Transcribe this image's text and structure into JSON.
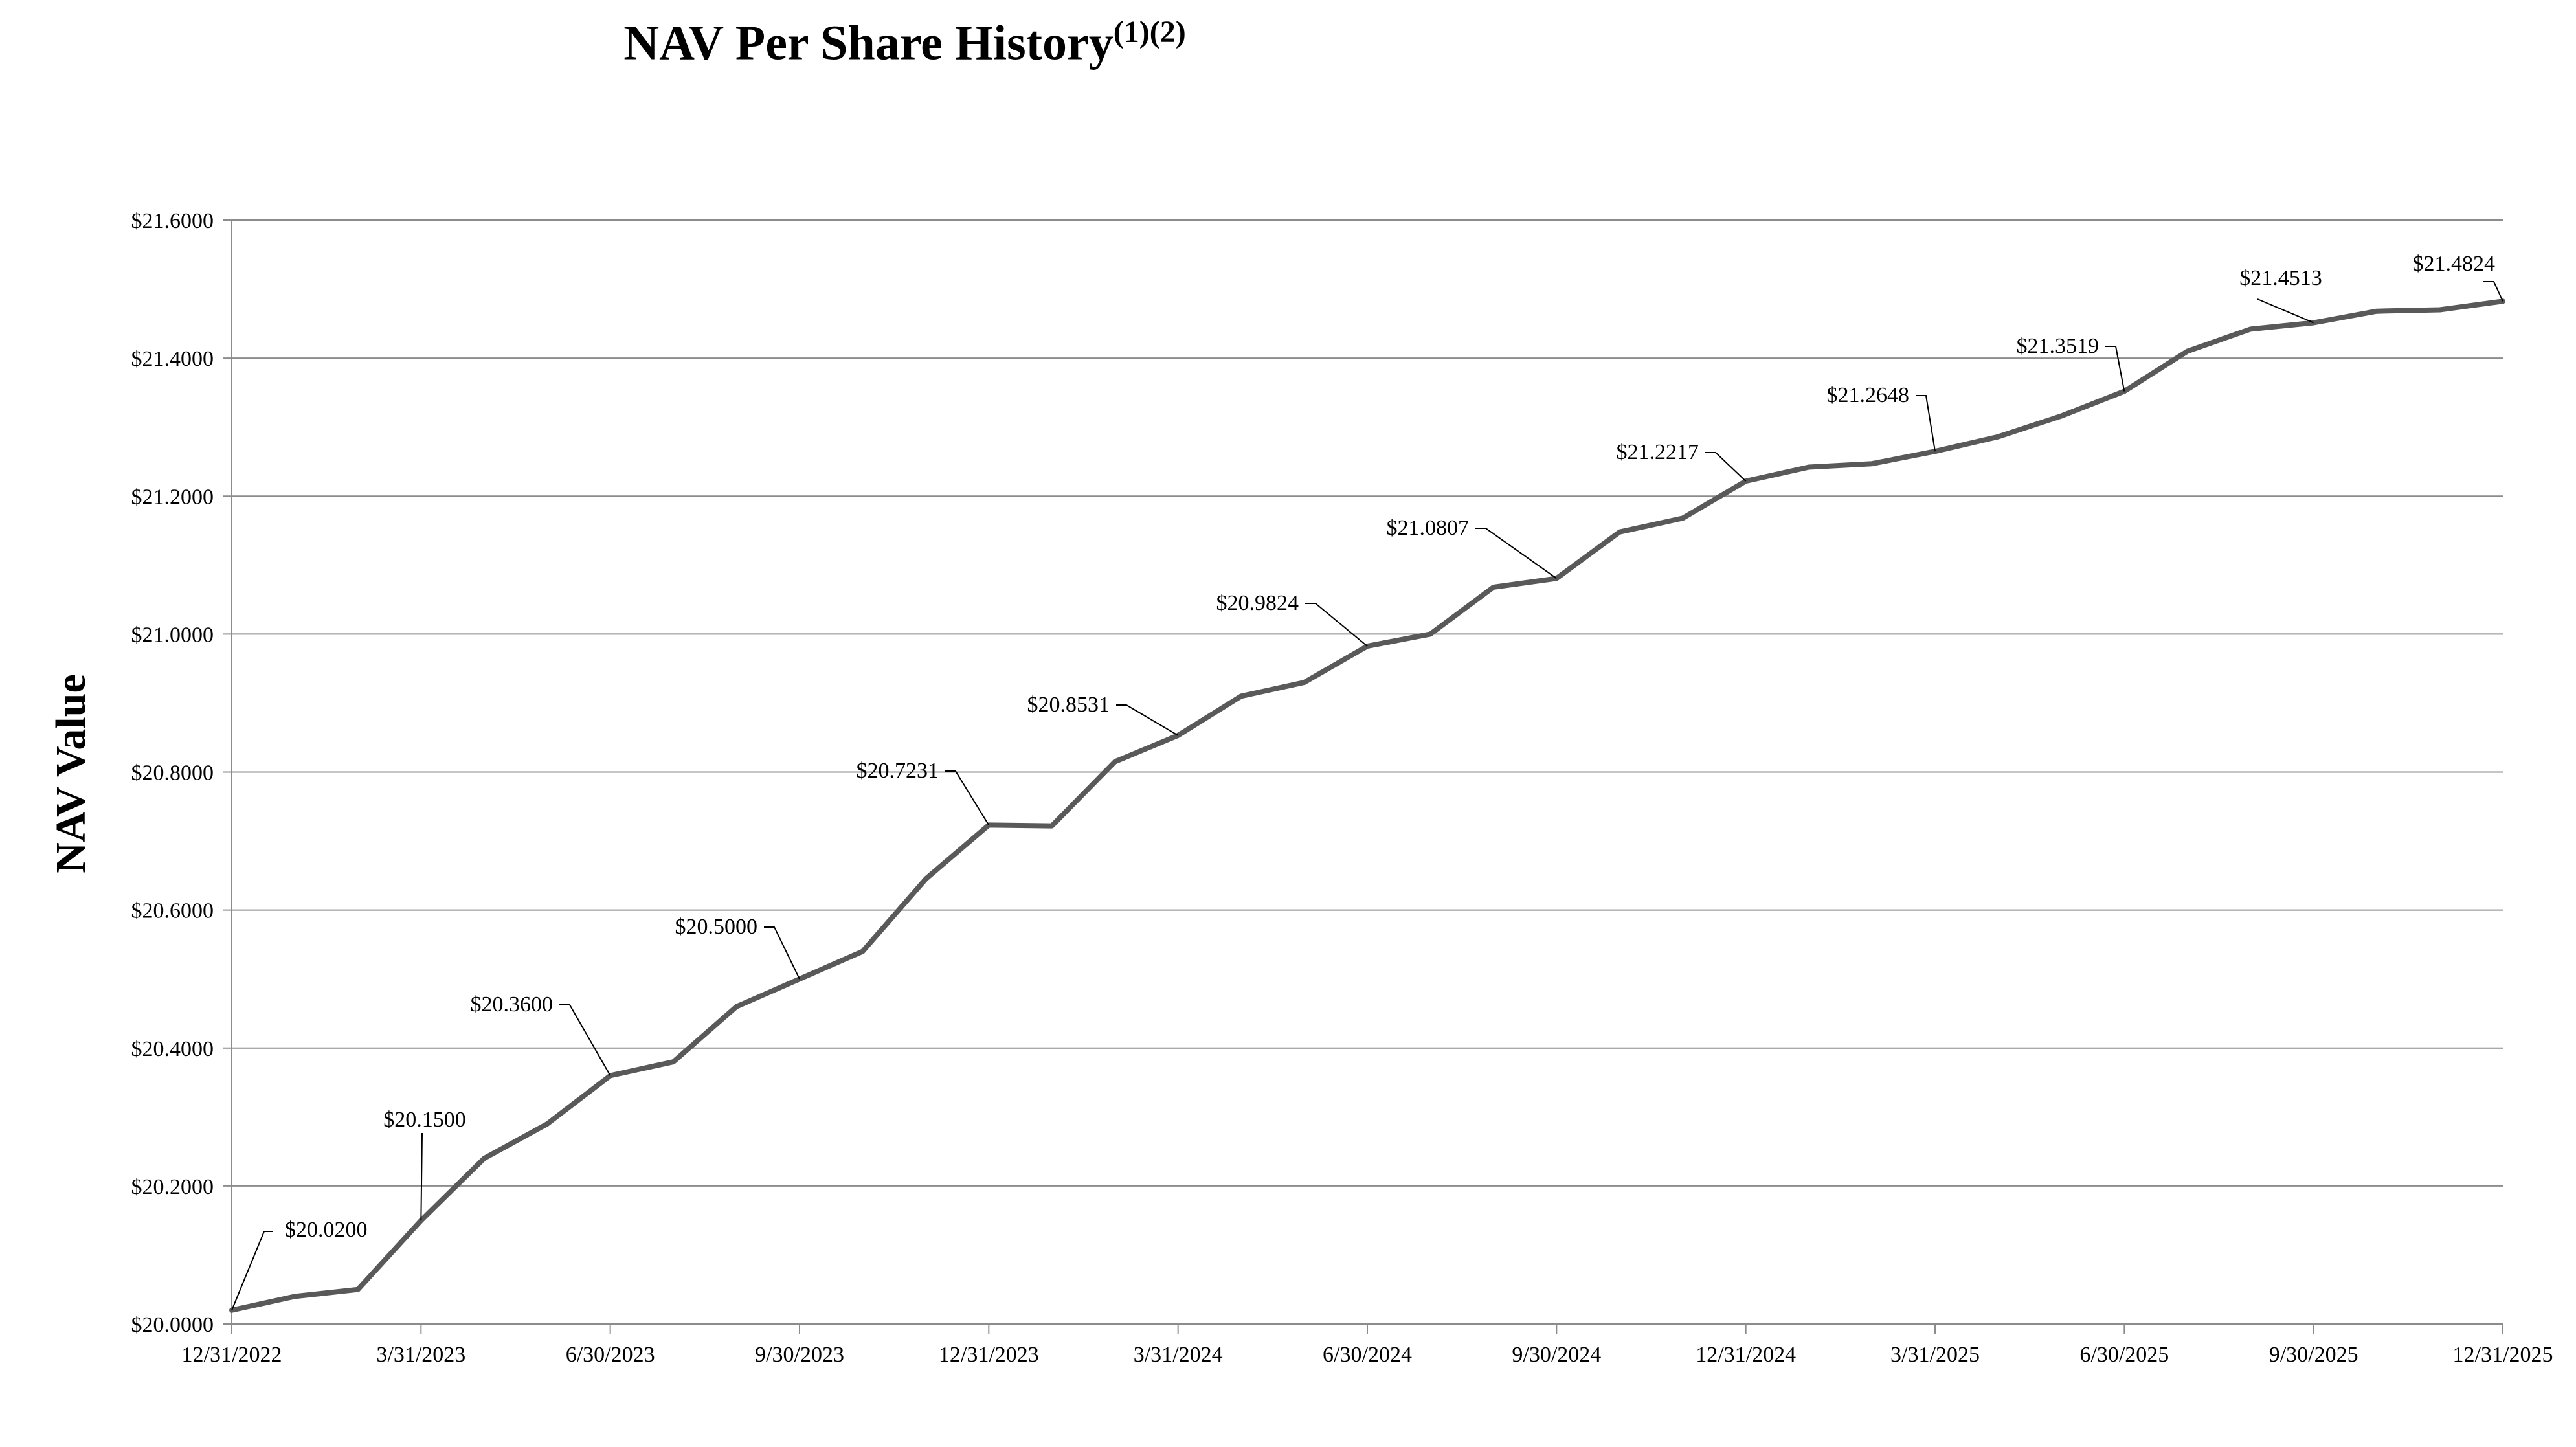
{
  "chart_data": {
    "type": "line",
    "title": "NAV Per Share History",
    "title_superscript": "(1)(2)",
    "xlabel": "",
    "ylabel": "NAV Value",
    "ylim": [
      20.0,
      21.6
    ],
    "grid": true,
    "x_tick_labels": [
      "12/31/2022",
      "3/31/2023",
      "6/30/2023",
      "9/30/2023",
      "12/31/2023",
      "3/31/2024",
      "6/30/2024",
      "9/30/2024",
      "12/31/2024",
      "3/31/2025",
      "6/30/2025",
      "9/30/2025",
      "12/31/2025"
    ],
    "y_tick_labels": [
      "$20.0000",
      "$20.2000",
      "$20.4000",
      "$20.6000",
      "$20.8000",
      "$21.0000",
      "$21.2000",
      "$21.4000",
      "$21.6000"
    ],
    "series": [
      {
        "name": "NAV Per Share",
        "color": "#595959",
        "x_months": [
          0,
          1,
          2,
          3,
          4,
          5,
          6,
          7,
          8,
          9,
          10,
          11,
          12,
          13,
          14,
          15,
          16,
          17,
          18,
          19,
          20,
          21,
          22,
          23,
          24,
          25,
          26,
          27,
          28,
          29,
          30,
          31,
          32,
          33,
          34,
          35,
          36
        ],
        "values": [
          20.02,
          20.04,
          20.05,
          20.15,
          20.24,
          20.29,
          20.36,
          20.38,
          20.46,
          20.5,
          20.54,
          20.645,
          20.7231,
          20.722,
          20.815,
          20.8531,
          20.91,
          20.93,
          20.9824,
          21.0,
          21.068,
          21.0807,
          21.148,
          21.168,
          21.2217,
          21.242,
          21.247,
          21.2648,
          21.286,
          21.316,
          21.3519,
          21.41,
          21.442,
          21.4513,
          21.468,
          21.47,
          21.4824
        ]
      }
    ],
    "annotations": [
      {
        "text": "$20.0200",
        "month": 0
      },
      {
        "text": "$20.1500",
        "month": 3
      },
      {
        "text": "$20.3600",
        "month": 6
      },
      {
        "text": "$20.5000",
        "month": 9
      },
      {
        "text": "$20.7231",
        "month": 12
      },
      {
        "text": "$20.8531",
        "month": 15
      },
      {
        "text": "$20.9824",
        "month": 18
      },
      {
        "text": "$21.0807",
        "month": 21
      },
      {
        "text": "$21.2217",
        "month": 24
      },
      {
        "text": "$21.2648",
        "month": 27
      },
      {
        "text": "$21.3519",
        "month": 30
      },
      {
        "text": "$21.4513",
        "month": 33
      },
      {
        "text": "$21.4824",
        "month": 36
      }
    ]
  }
}
